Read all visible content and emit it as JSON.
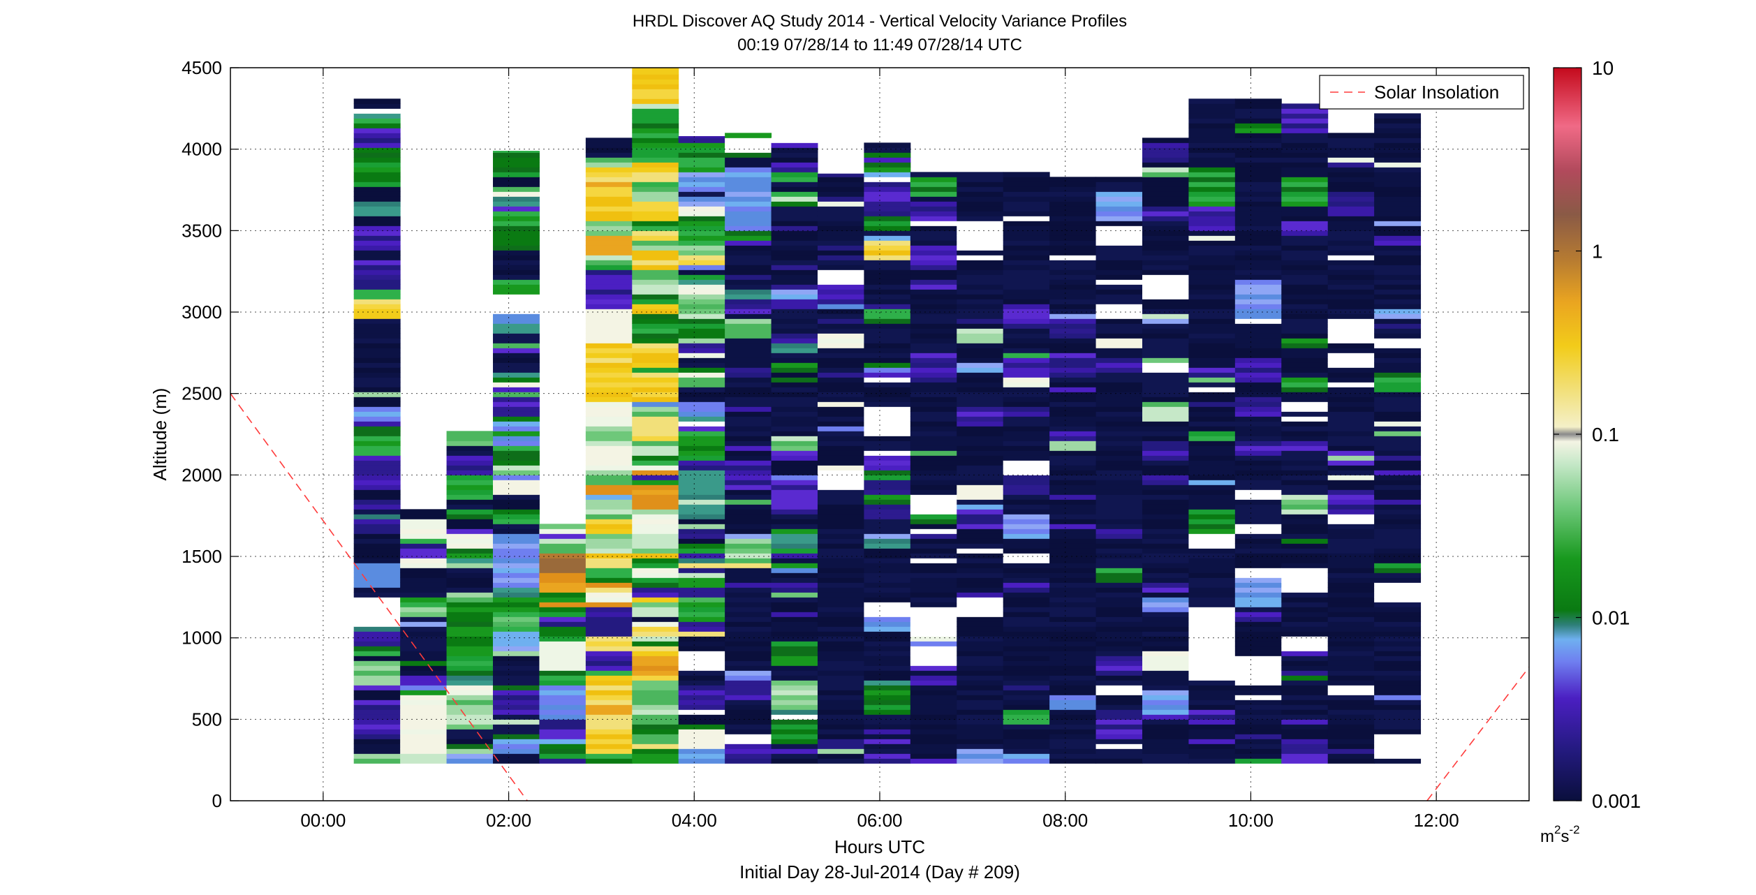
{
  "chart_data": {
    "type": "heatmap",
    "title": "HRDL Discover AQ Study 2014 - Vertical Velocity Variance Profiles",
    "subtitle": "00:19 07/28/14 to 11:49 07/28/14  UTC",
    "xlabel": "Hours UTC",
    "xlabel2": "Initial Day 28-Jul-2014 (Day # 209)",
    "ylabel": "Altitude (m)",
    "xlim": [
      -1,
      13
    ],
    "ylim": [
      0,
      4500
    ],
    "xticks": [
      0,
      2,
      4,
      6,
      8,
      10,
      12
    ],
    "xtick_labels": [
      "00:00",
      "02:00",
      "04:00",
      "06:00",
      "08:00",
      "10:00",
      "12:00"
    ],
    "yticks": [
      0,
      500,
      1000,
      1500,
      2000,
      2500,
      3000,
      3500,
      4000,
      4500
    ],
    "ytick_labels": [
      "0",
      "500",
      "1000",
      "1500",
      "2000",
      "2500",
      "3000",
      "3500",
      "4000",
      "4500"
    ],
    "grid": true,
    "colorbar": {
      "scale": "log",
      "range": [
        0.001,
        10
      ],
      "tick_values": [
        0.001,
        0.01,
        0.1,
        1,
        10
      ],
      "tick_labels": [
        "0.001",
        "0.01",
        "0.1",
        "1",
        "10"
      ],
      "units_base": "m",
      "units_exp1": "2",
      "units_mid": "s",
      "units_exp2": "-2"
    },
    "legend": {
      "placement": "top-right",
      "entries": [
        "Solar Insolation"
      ]
    },
    "solar_insolation_line": {
      "color": "#ff3b3b",
      "segments": [
        {
          "x": [
            -1.0,
            2.2
          ],
          "y": [
            2500,
            0
          ]
        },
        {
          "x": [
            11.9,
            13.0
          ],
          "y": [
            0,
            820
          ]
        }
      ]
    },
    "profile_bottom_m": 230,
    "profiles": [
      {
        "x_start": 0.33,
        "x_end": 0.83,
        "top": 4310,
        "regime": "mid_low"
      },
      {
        "x_start": 0.83,
        "x_end": 1.33,
        "top": 1790,
        "regime": "low_med"
      },
      {
        "x_start": 1.33,
        "x_end": 1.83,
        "top": 2270,
        "regime": "low_med"
      },
      {
        "x_start": 1.83,
        "x_end": 2.33,
        "top": 3990,
        "regime": "low_med"
      },
      {
        "x_start": 2.33,
        "x_end": 2.83,
        "top": 1700,
        "regime": "med_high"
      },
      {
        "x_start": 2.83,
        "x_end": 3.33,
        "top": 4070,
        "regime": "high"
      },
      {
        "x_start": 3.33,
        "x_end": 3.83,
        "top": 4500,
        "regime": "high"
      },
      {
        "x_start": 3.83,
        "x_end": 4.33,
        "top": 4080,
        "regime": "med"
      },
      {
        "x_start": 4.33,
        "x_end": 4.83,
        "top": 4100,
        "regime": "med_low"
      },
      {
        "x_start": 4.83,
        "x_end": 5.33,
        "top": 4070,
        "regime": "med_low"
      },
      {
        "x_start": 5.33,
        "x_end": 5.83,
        "top": 3850,
        "regime": "low"
      },
      {
        "x_start": 5.83,
        "x_end": 6.33,
        "top": 4040,
        "regime": "med_low"
      },
      {
        "x_start": 6.33,
        "x_end": 6.83,
        "top": 3860,
        "regime": "low"
      },
      {
        "x_start": 6.83,
        "x_end": 7.33,
        "top": 3860,
        "regime": "low"
      },
      {
        "x_start": 7.33,
        "x_end": 7.83,
        "top": 3860,
        "regime": "low"
      },
      {
        "x_start": 7.83,
        "x_end": 8.33,
        "top": 3830,
        "regime": "low"
      },
      {
        "x_start": 8.33,
        "x_end": 8.83,
        "top": 3830,
        "regime": "low"
      },
      {
        "x_start": 8.83,
        "x_end": 9.33,
        "top": 4070,
        "regime": "low"
      },
      {
        "x_start": 9.33,
        "x_end": 9.83,
        "top": 4310,
        "regime": "low"
      },
      {
        "x_start": 9.83,
        "x_end": 10.33,
        "top": 4310,
        "regime": "low"
      },
      {
        "x_start": 10.33,
        "x_end": 10.83,
        "top": 4280,
        "regime": "low"
      },
      {
        "x_start": 10.83,
        "x_end": 11.33,
        "top": 4100,
        "regime": "low"
      },
      {
        "x_start": 11.33,
        "x_end": 11.83,
        "top": 4220,
        "regime": "low"
      }
    ]
  }
}
